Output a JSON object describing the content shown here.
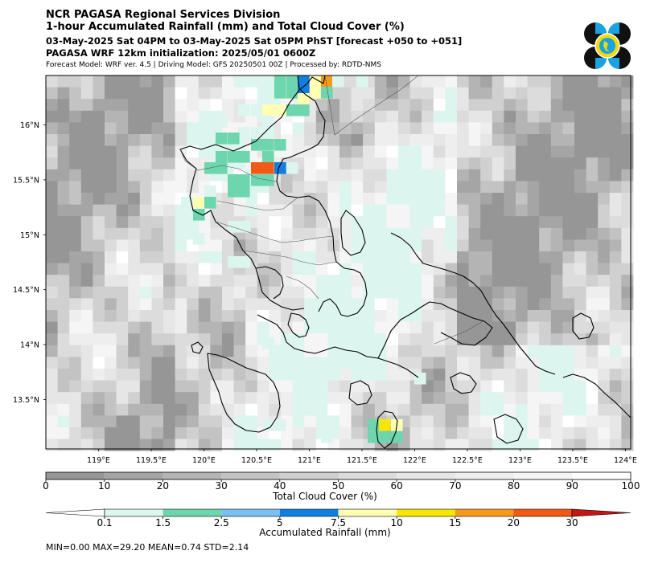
{
  "header": {
    "title_line1": "NCR PAGASA Regional Services Division",
    "title_line2": "1-hour Accumulated Rainfall (mm) and Total Cloud Cover (%)",
    "period": "03-May-2025 Sat 04PM to 03-May-2025 Sat 05PM PhST [forecast +050 to +051]",
    "init": "PAGASA WRF 12km initialization: 2025/05/01 0600Z",
    "model_info": "Forecast Model: WRF ver. 4.5 | Driving Model: GFS 20250501 00Z | Processed by: RDTD-NMS"
  },
  "map": {
    "lon_range": [
      118.5,
      124.05
    ],
    "lat_range": [
      13.05,
      16.45
    ],
    "lon_ticks": [
      "119°E",
      "119.5°E",
      "120°E",
      "120.5°E",
      "121°E",
      "121.5°E",
      "122°E",
      "122.5°E",
      "123°E",
      "123.5°E",
      "124°E"
    ],
    "lon_tick_values": [
      119,
      119.5,
      120,
      120.5,
      121,
      121.5,
      122,
      122.5,
      123,
      123.5,
      124
    ],
    "lat_ticks": [
      "16°N",
      "15.5°N",
      "15°N",
      "14.5°N",
      "14°N",
      "13.5°N"
    ],
    "lat_tick_values": [
      16,
      15.5,
      15,
      14.5,
      14,
      13.5
    ]
  },
  "cloud_colorbar": {
    "label": "Total Cloud Cover (%)",
    "ticks": [
      "0",
      "10",
      "20",
      "30",
      "40",
      "50",
      "60",
      "70",
      "80",
      "90",
      "100"
    ],
    "colors": [
      "#969696",
      "#a5a5a5",
      "#b4b4b4",
      "#c3c3c3",
      "#d0d0d0",
      "#dcdcdc",
      "#e6e6e6",
      "#eeeeee",
      "#f5f5f5",
      "#ffffff"
    ]
  },
  "rain_colorbar": {
    "label": "Accumulated Rainfall (mm)",
    "ticks": [
      "0.1",
      "1.5",
      "2.5",
      "5",
      "7.5",
      "10",
      "15",
      "20",
      "30"
    ],
    "colors": [
      "#ffffff",
      "#dcf5ee",
      "#6ed6ae",
      "#7cbff3",
      "#0f7fe0",
      "#ffffb4",
      "#f7e600",
      "#f79a1a",
      "#f05a14",
      "#c81414"
    ]
  },
  "stats": {
    "text": "MIN=0.00   MAX=29.20   MEAN=0.74   STD=2.14"
  }
}
